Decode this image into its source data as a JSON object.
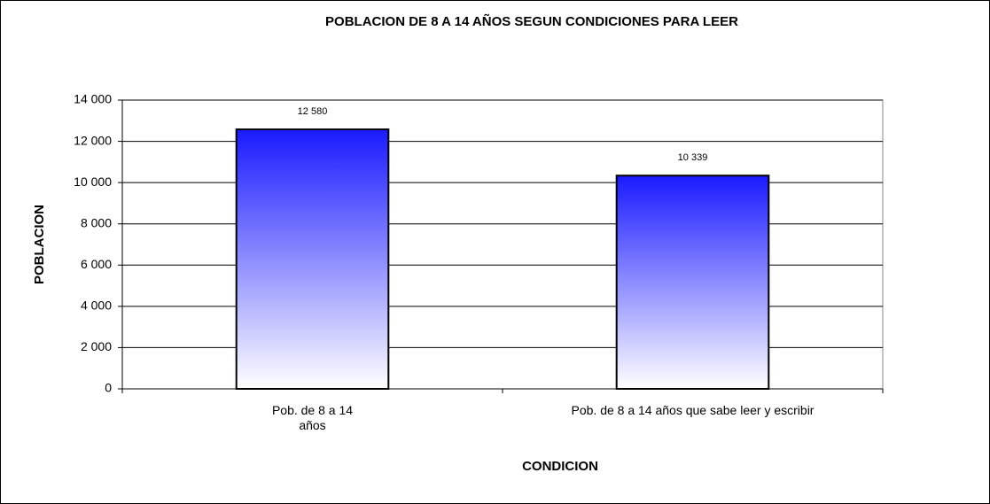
{
  "chart_data": {
    "type": "bar",
    "title": "POBLACION DE 8 A 14 AÑOS SEGUN CONDICIONES PARA LEER",
    "x_label": "CONDICION",
    "y_label": "POBLACION",
    "categories": [
      "Pob. de 8 a 14 años",
      "Pob. de 8 a 14 años que sabe leer y escribir"
    ],
    "values": [
      12580,
      10339
    ],
    "value_labels": [
      "12 580",
      "10 339"
    ],
    "color": "#1a1aff",
    "ylim": [
      0,
      14000
    ],
    "yticks": [
      0,
      {
        "value": 2000,
        "label": "2 000"
      },
      {
        "value": 4000,
        "label": "4 000"
      },
      {
        "value": 6000,
        "label": "6 000"
      },
      {
        "value": 8000,
        "label": "8 000"
      },
      {
        "value": 10000,
        "label": "10 000"
      },
      {
        "value": 12000,
        "label": "12 000"
      },
      {
        "value": 14000,
        "label": "14 000"
      }
    ],
    "grid": true
  }
}
